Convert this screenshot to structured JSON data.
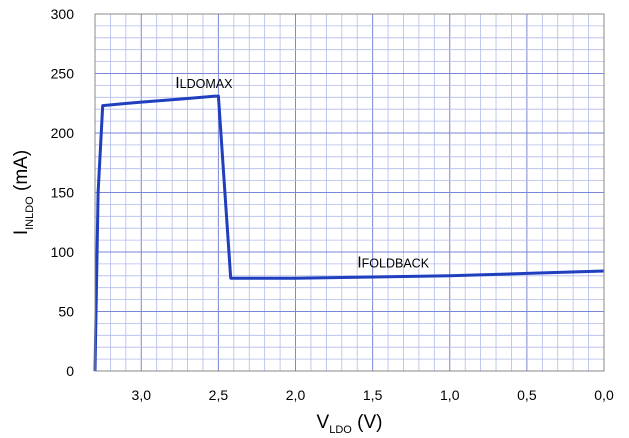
{
  "chart_data": {
    "type": "line",
    "title": "",
    "xlabel": {
      "main": "V",
      "sub": "LDO",
      "unit": " (V)"
    },
    "ylabel": {
      "main": "I",
      "sub": "INLDO",
      "unit": " (mA)"
    },
    "xlim": [
      3.3,
      0.0
    ],
    "ylim": [
      0,
      300
    ],
    "x_reversed": true,
    "grid": true,
    "x_ticks": [
      3.0,
      2.5,
      2.0,
      1.5,
      1.0,
      0.5,
      0.0
    ],
    "x_tick_labels": [
      "3,0",
      "2,5",
      "2,0",
      "1,5",
      "1,0",
      "0,5",
      "0,0"
    ],
    "y_ticks": [
      0,
      50,
      100,
      150,
      200,
      250,
      300
    ],
    "y_tick_labels": [
      "0",
      "50",
      "100",
      "150",
      "200",
      "250",
      "300"
    ],
    "series": [
      {
        "color": "#1f3fbf",
        "x": [
          3.3,
          3.28,
          3.25,
          3.0,
          2.7,
          2.52,
          2.5,
          2.42,
          2.3,
          2.0,
          1.5,
          1.0,
          0.5,
          0.0
        ],
        "y": [
          0,
          150,
          223,
          226,
          229,
          231,
          231,
          78,
          78,
          78,
          79,
          80,
          82,
          84
        ]
      }
    ],
    "annotations": [
      {
        "first": "I",
        "rest": "LDOMAX",
        "x": 2.78,
        "y": 238
      },
      {
        "first": "I",
        "rest": "FOLDBACK",
        "x": 1.6,
        "y": 87
      }
    ]
  }
}
